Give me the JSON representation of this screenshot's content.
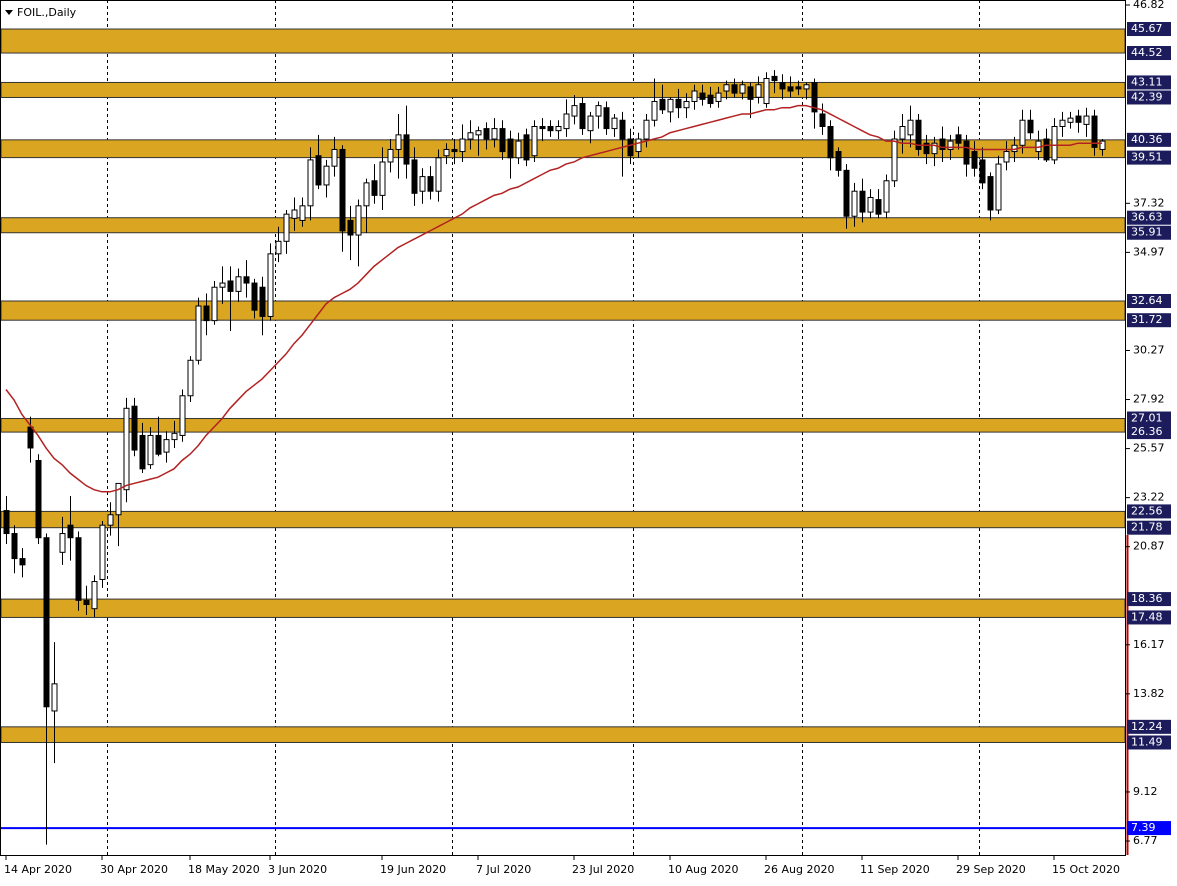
{
  "chart_data": {
    "type": "candlestick",
    "title": "FOIL.,Daily",
    "categories": [
      "14 Apr 2020",
      null,
      null,
      null,
      null,
      null,
      null,
      null,
      null,
      null,
      null,
      null,
      "30 Apr 2020",
      null,
      null,
      null,
      null,
      null,
      null,
      null,
      null,
      null,
      null,
      "18 May 2020",
      null,
      null,
      null,
      null,
      null,
      null,
      null,
      null,
      null,
      "3 Jun 2020",
      null,
      null,
      null,
      null,
      null,
      null,
      null,
      null,
      null,
      null,
      null,
      null,
      null,
      "19 Jun 2020",
      null,
      null,
      null,
      null,
      null,
      null,
      null,
      null,
      null,
      null,
      null,
      "7 Jul 2020",
      null,
      null,
      null,
      null,
      null,
      null,
      null,
      null,
      null,
      null,
      null,
      "23 Jul 2020",
      null,
      null,
      null,
      null,
      null,
      null,
      null,
      null,
      null,
      null,
      null,
      "10 Aug 2020",
      null,
      null,
      null,
      null,
      null,
      null,
      null,
      null,
      null,
      null,
      null,
      "26 Aug 2020",
      null,
      null,
      null,
      null,
      null,
      null,
      null,
      null,
      null,
      null,
      null,
      "11 Sep 2020",
      null,
      null,
      null,
      null,
      null,
      null,
      null,
      null,
      null,
      null,
      null,
      "29 Sep 2020",
      null,
      null,
      null,
      null,
      null,
      null,
      null,
      null,
      null,
      null,
      null,
      "15 Oct 2020",
      null,
      null,
      null,
      null,
      null,
      null
    ],
    "open": [
      22.6,
      21.5,
      20.3,
      26.6,
      25.0,
      21.3,
      13.0,
      20.6,
      21.9,
      21.3,
      18.3,
      17.9,
      19.3,
      21.9,
      22.4,
      23.6,
      27.6,
      26.2,
      24.8,
      26.2,
      25.4,
      26.0,
      26.2,
      28.1,
      29.8,
      32.4,
      31.7,
      33.3,
      33.6,
      33.1,
      33.8,
      33.5,
      33.3,
      31.9,
      34.9,
      35.5,
      36.6,
      36.5,
      37.2,
      39.6,
      38.2,
      39.1,
      39.9,
      36.5,
      35.8,
      37.2,
      38.4,
      37.7,
      39.3,
      39.9,
      40.6,
      39.4,
      37.9,
      38.6,
      37.9,
      39.6,
      39.9,
      39.8,
      40.4,
      40.6,
      40.9,
      40.4,
      40.9,
      40.4,
      39.5,
      40.6,
      39.6,
      41.0,
      41.0,
      40.8,
      40.9,
      41.5,
      42.1,
      40.8,
      41.5,
      41.9,
      40.9,
      41.3,
      40.4,
      39.8,
      40.4,
      41.3,
      42.3,
      41.7,
      42.3,
      41.9,
      42.2,
      42.6,
      42.5,
      42.2,
      42.7,
      43.0,
      42.6,
      42.9,
      42.4,
      42.1,
      43.4,
      43.1,
      42.9,
      42.9,
      42.8,
      43.1,
      41.6,
      41.0,
      39.8,
      38.9,
      36.7,
      37.9,
      36.9,
      37.5,
      36.9,
      38.4,
      40.4,
      40.6,
      41.3,
      40.2,
      39.7,
      40.4,
      39.9,
      40.6,
      40.3,
      39.8,
      39.4,
      38.6,
      37.0,
      39.3,
      39.8,
      40.1,
      41.3,
      39.8,
      40.4,
      39.4,
      41.0,
      41.2,
      41.5,
      41.1,
      41.5,
      39.9
    ],
    "high": [
      23.3,
      21.9,
      20.8,
      27.1,
      25.3,
      21.5,
      16.3,
      22.3,
      23.3,
      21.6,
      19.0,
      19.5,
      22.1,
      23.0,
      23.9,
      28.0,
      28.0,
      26.8,
      26.6,
      27.1,
      26.4,
      26.9,
      28.4,
      30.0,
      32.8,
      33.0,
      33.6,
      34.3,
      34.3,
      34.2,
      34.6,
      33.7,
      33.8,
      35.4,
      36.2,
      37.0,
      37.6,
      37.6,
      40.0,
      40.6,
      39.4,
      40.5,
      40.1,
      37.2,
      37.5,
      38.5,
      39.2,
      40.0,
      40.4,
      41.6,
      42.0,
      40.0,
      39.0,
      39.1,
      39.9,
      40.2,
      40.4,
      41.1,
      41.3,
      41.0,
      41.2,
      41.4,
      41.3,
      40.8,
      40.7,
      40.9,
      41.3,
      41.4,
      41.3,
      41.3,
      42.3,
      42.5,
      42.4,
      41.7,
      42.2,
      42.2,
      41.6,
      41.7,
      40.9,
      40.7,
      41.6,
      43.3,
      43.0,
      42.4,
      42.8,
      42.6,
      43.0,
      43.0,
      42.9,
      42.9,
      43.2,
      43.3,
      43.2,
      43.1,
      43.4,
      43.6,
      43.7,
      43.5,
      43.4,
      43.2,
      43.1,
      43.3,
      42.1,
      41.3,
      40.0,
      39.2,
      38.3,
      38.5,
      38.0,
      38.0,
      38.7,
      40.8,
      41.6,
      42.0,
      41.6,
      40.6,
      40.5,
      41.0,
      40.6,
      41.0,
      40.6,
      40.3,
      40.0,
      38.8,
      39.6,
      40.3,
      40.5,
      41.8,
      41.8,
      40.8,
      40.9,
      41.4,
      41.7,
      41.7,
      41.8,
      41.9,
      41.8,
      40.4
    ],
    "low": [
      21.0,
      19.6,
      19.4,
      24.9,
      21.0,
      6.6,
      10.5,
      20.0,
      20.2,
      17.8,
      17.6,
      17.5,
      18.9,
      21.4,
      20.9,
      23.0,
      25.2,
      24.4,
      24.6,
      25.2,
      24.9,
      25.6,
      25.9,
      27.8,
      29.6,
      31.0,
      31.5,
      32.5,
      31.2,
      32.6,
      32.8,
      31.8,
      31.0,
      31.7,
      34.5,
      34.9,
      36.0,
      36.2,
      36.5,
      38.0,
      37.6,
      38.6,
      35.0,
      34.6,
      34.3,
      35.9,
      37.3,
      37.0,
      38.8,
      38.5,
      38.5,
      37.2,
      37.3,
      37.5,
      37.4,
      39.2,
      39.2,
      39.3,
      39.9,
      39.6,
      39.9,
      40.0,
      39.4,
      38.5,
      39.2,
      39.1,
      39.3,
      40.3,
      40.5,
      40.4,
      40.5,
      41.1,
      40.6,
      40.2,
      40.9,
      40.6,
      40.5,
      38.6,
      39.2,
      39.5,
      40.0,
      41.0,
      41.6,
      41.2,
      41.4,
      41.4,
      41.8,
      42.0,
      41.9,
      41.9,
      42.3,
      42.4,
      42.3,
      41.4,
      42.1,
      41.9,
      42.6,
      42.3,
      42.4,
      42.5,
      42.3,
      40.9,
      40.6,
      38.9,
      38.6,
      36.1,
      36.2,
      36.4,
      36.6,
      36.6,
      36.6,
      38.1,
      39.7,
      40.0,
      39.6,
      39.2,
      39.1,
      39.3,
      39.4,
      39.9,
      38.6,
      38.6,
      38.0,
      36.5,
      36.8,
      38.9,
      39.3,
      39.7,
      40.4,
      39.4,
      39.3,
      39.2,
      40.5,
      40.9,
      40.7,
      40.5,
      39.6,
      39.6
    ],
    "close": [
      21.5,
      20.3,
      20.0,
      25.6,
      21.3,
      13.2,
      14.3,
      21.5,
      21.3,
      18.3,
      18.1,
      19.2,
      21.9,
      22.4,
      23.9,
      27.5,
      25.5,
      24.6,
      26.2,
      25.3,
      26.0,
      26.3,
      28.1,
      29.8,
      32.4,
      31.7,
      33.3,
      33.5,
      33.1,
      33.8,
      33.5,
      32.2,
      31.9,
      34.9,
      35.5,
      36.8,
      37.0,
      37.2,
      39.4,
      38.2,
      39.1,
      39.9,
      36.0,
      35.8,
      37.2,
      38.3,
      37.7,
      39.3,
      39.9,
      40.6,
      39.2,
      37.8,
      38.6,
      37.9,
      39.5,
      39.9,
      39.8,
      40.4,
      40.7,
      40.8,
      40.4,
      40.9,
      39.8,
      39.5,
      40.3,
      39.4,
      41.0,
      40.9,
      40.8,
      41.0,
      41.6,
      42.0,
      40.9,
      41.5,
      42.0,
      40.9,
      41.4,
      40.4,
      39.6,
      40.4,
      41.3,
      42.2,
      41.8,
      42.3,
      41.9,
      42.2,
      42.7,
      42.3,
      42.1,
      42.6,
      43.0,
      42.6,
      43.0,
      42.3,
      43.0,
      43.3,
      43.2,
      42.8,
      42.7,
      42.8,
      43.0,
      41.7,
      41.0,
      39.5,
      38.9,
      36.7,
      37.9,
      36.9,
      37.6,
      36.8,
      38.4,
      40.4,
      41.0,
      41.3,
      39.9,
      39.7,
      40.2,
      39.9,
      40.3,
      40.2,
      39.2,
      39.0,
      38.3,
      37.0,
      39.2,
      39.8,
      40.1,
      41.3,
      40.7,
      40.3,
      39.4,
      41.0,
      41.3,
      41.4,
      41.2,
      41.5,
      40.0,
      40.3
    ],
    "up_color": "#ffffff",
    "down_color": "#000000",
    "ma": {
      "color": "#b22222",
      "values": [
        28.4,
        27.9,
        27.2,
        26.7,
        26.2,
        25.6,
        25.1,
        24.8,
        24.4,
        24.1,
        23.8,
        23.6,
        23.5,
        23.5,
        23.6,
        23.8,
        23.9,
        24.0,
        24.1,
        24.2,
        24.4,
        24.6,
        25.0,
        25.3,
        25.7,
        26.2,
        26.6,
        27.0,
        27.5,
        27.9,
        28.3,
        28.6,
        28.9,
        29.3,
        29.7,
        30.1,
        30.6,
        31.0,
        31.5,
        32.0,
        32.5,
        32.8,
        33.0,
        33.2,
        33.5,
        33.9,
        34.3,
        34.6,
        34.9,
        35.2,
        35.4,
        35.6,
        35.8,
        36.0,
        36.2,
        36.4,
        36.6,
        36.8,
        37.1,
        37.3,
        37.5,
        37.7,
        37.8,
        38.0,
        38.1,
        38.3,
        38.5,
        38.7,
        38.9,
        39.0,
        39.2,
        39.3,
        39.5,
        39.6,
        39.7,
        39.8,
        39.9,
        40.0,
        40.1,
        40.2,
        40.3,
        40.4,
        40.5,
        40.7,
        40.8,
        40.9,
        41.0,
        41.1,
        41.2,
        41.3,
        41.4,
        41.5,
        41.6,
        41.6,
        41.7,
        41.8,
        41.8,
        41.9,
        41.9,
        42.0,
        42.0,
        41.9,
        41.8,
        41.6,
        41.4,
        41.2,
        41.0,
        40.8,
        40.6,
        40.5,
        40.3,
        40.3,
        40.2,
        40.2,
        40.1,
        40.1,
        40.1,
        40.0,
        40.0,
        40.0,
        40.0,
        39.9,
        39.9,
        39.9,
        39.9,
        39.9,
        39.9,
        40.0,
        40.0,
        40.0,
        40.1,
        40.1,
        40.1,
        40.1,
        40.2,
        40.2,
        40.2,
        40.2
      ]
    },
    "zones": [
      {
        "top": 45.67,
        "bottom": 44.52
      },
      {
        "top": 43.11,
        "bottom": 42.39
      },
      {
        "top": 40.36,
        "bottom": 39.51
      },
      {
        "top": 36.63,
        "bottom": 35.91
      },
      {
        "top": 32.64,
        "bottom": 31.72
      },
      {
        "top": 27.01,
        "bottom": 26.36
      },
      {
        "top": 22.56,
        "bottom": 21.78
      },
      {
        "top": 18.36,
        "bottom": 17.48
      },
      {
        "top": 12.24,
        "bottom": 11.49
      }
    ],
    "zone_color": "#daa520",
    "hline": {
      "value": 7.39,
      "color": "#0000ff"
    },
    "ylim": [
      6.1,
      47.06
    ],
    "yticks": [
      46.82,
      37.32,
      34.97,
      30.27,
      27.92,
      25.57,
      23.22,
      20.87,
      16.17,
      13.82,
      9.12,
      6.77
    ]
  }
}
